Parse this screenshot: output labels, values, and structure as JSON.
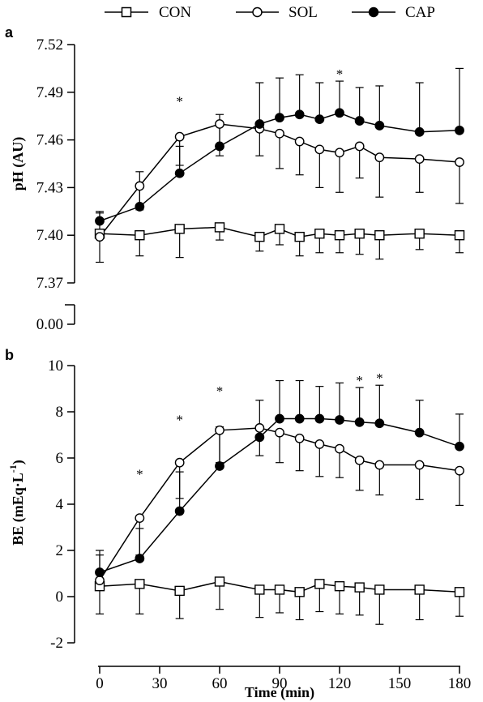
{
  "legend": [
    {
      "label": "CON",
      "marker": "open-square"
    },
    {
      "label": "SOL",
      "marker": "open-circle"
    },
    {
      "label": "CAP",
      "marker": "filled-circle"
    }
  ],
  "chart_data": [
    {
      "type": "line",
      "panel": "a",
      "ylabel": "pH (AU)",
      "xlabel": "",
      "ylim": [
        7.37,
        7.52
      ],
      "yticks": [
        7.37,
        7.4,
        7.43,
        7.46,
        7.49,
        7.52
      ],
      "ytick_labels": [
        "7.37",
        "7.40",
        "7.43",
        "7.46",
        "7.49",
        "7.52"
      ],
      "axis_break_label": "0.00",
      "series": [
        {
          "name": "CON",
          "marker": "open-square",
          "x": [
            0,
            20,
            40,
            60,
            80,
            90,
            100,
            110,
            120,
            130,
            140,
            160,
            180
          ],
          "y": [
            7.401,
            7.4,
            7.404,
            7.405,
            7.399,
            7.404,
            7.399,
            7.401,
            7.4,
            7.401,
            7.4,
            7.401,
            7.4
          ],
          "err": [
            0.018,
            0.013,
            0.018,
            0.008,
            0.009,
            0.01,
            0.012,
            0.012,
            0.011,
            0.013,
            0.015,
            0.01,
            0.011
          ]
        },
        {
          "name": "SOL",
          "marker": "open-circle",
          "x": [
            0,
            20,
            40,
            60,
            80,
            90,
            100,
            110,
            120,
            130,
            140,
            160,
            180
          ],
          "y": [
            7.399,
            7.431,
            7.462,
            7.47,
            7.467,
            7.464,
            7.459,
            7.454,
            7.452,
            7.456,
            7.449,
            7.448,
            7.446
          ],
          "err": [
            0.016,
            0.015,
            0.018,
            0.02,
            0.017,
            0.022,
            0.021,
            0.024,
            0.025,
            0.02,
            0.025,
            0.021,
            0.026
          ]
        },
        {
          "name": "CAP",
          "marker": "filled-circle",
          "x": [
            0,
            20,
            40,
            60,
            80,
            90,
            100,
            110,
            120,
            130,
            140,
            160,
            180
          ],
          "y": [
            7.409,
            7.418,
            7.439,
            7.456,
            7.47,
            7.474,
            7.476,
            7.473,
            7.477,
            7.472,
            7.469,
            7.465,
            7.466
          ],
          "err": [
            0.005,
            0.022,
            0.017,
            0.02,
            0.026,
            0.025,
            0.025,
            0.023,
            0.02,
            0.021,
            0.025,
            0.031,
            0.039
          ]
        }
      ],
      "significance": [
        {
          "x": 40,
          "label": "*"
        },
        {
          "x": 120,
          "label": "*"
        }
      ]
    },
    {
      "type": "line",
      "panel": "b",
      "ylabel": "BE (mEq·L",
      "ylabel_superscript": "-1",
      "ylabel_suffix": ")",
      "xlabel": "Time (min)",
      "xlim": [
        0,
        180
      ],
      "xticks": [
        0,
        30,
        60,
        90,
        120,
        150,
        180
      ],
      "xtick_labels": [
        "0",
        "30",
        "60",
        "90",
        "120",
        "150",
        "180"
      ],
      "ylim": [
        -2,
        10
      ],
      "yticks": [
        -2,
        0,
        2,
        4,
        6,
        8,
        10
      ],
      "ytick_labels": [
        "-2",
        "0",
        "2",
        "4",
        "6",
        "8",
        "10"
      ],
      "series": [
        {
          "name": "CON",
          "marker": "open-square",
          "x": [
            0,
            20,
            40,
            60,
            80,
            90,
            100,
            110,
            120,
            130,
            140,
            160,
            180
          ],
          "y": [
            0.45,
            0.55,
            0.25,
            0.65,
            0.3,
            0.3,
            0.2,
            0.55,
            0.45,
            0.4,
            0.3,
            0.3,
            0.2
          ],
          "err": [
            1.2,
            1.3,
            1.2,
            1.2,
            1.2,
            1.0,
            1.2,
            1.2,
            1.2,
            1.2,
            1.5,
            1.3,
            1.05
          ]
        },
        {
          "name": "SOL",
          "marker": "open-circle",
          "x": [
            0,
            20,
            40,
            60,
            80,
            90,
            100,
            110,
            120,
            130,
            140,
            160,
            180
          ],
          "y": [
            0.7,
            3.4,
            5.8,
            7.2,
            7.3,
            7.1,
            6.85,
            6.6,
            6.4,
            5.9,
            5.7,
            5.7,
            5.45
          ],
          "err": [
            1.1,
            1.6,
            1.55,
            1.4,
            1.2,
            1.3,
            1.4,
            1.4,
            1.25,
            1.3,
            1.3,
            1.5,
            1.5
          ]
        },
        {
          "name": "CAP",
          "marker": "filled-circle",
          "x": [
            0,
            20,
            40,
            60,
            80,
            90,
            100,
            110,
            120,
            130,
            140,
            160,
            180
          ],
          "y": [
            1.05,
            1.65,
            3.7,
            5.65,
            6.9,
            7.7,
            7.7,
            7.7,
            7.65,
            7.55,
            7.5,
            7.1,
            6.5
          ],
          "err": [
            0.95,
            1.3,
            1.7,
            1.7,
            1.6,
            1.65,
            1.65,
            1.4,
            1.6,
            1.5,
            1.65,
            1.4,
            1.4
          ]
        }
      ],
      "significance": [
        {
          "x": 20,
          "label": "*"
        },
        {
          "x": 40,
          "label": "*"
        },
        {
          "x": 60,
          "label": "*"
        },
        {
          "x": 130,
          "label": "*"
        },
        {
          "x": 140,
          "label": "*"
        }
      ]
    }
  ]
}
